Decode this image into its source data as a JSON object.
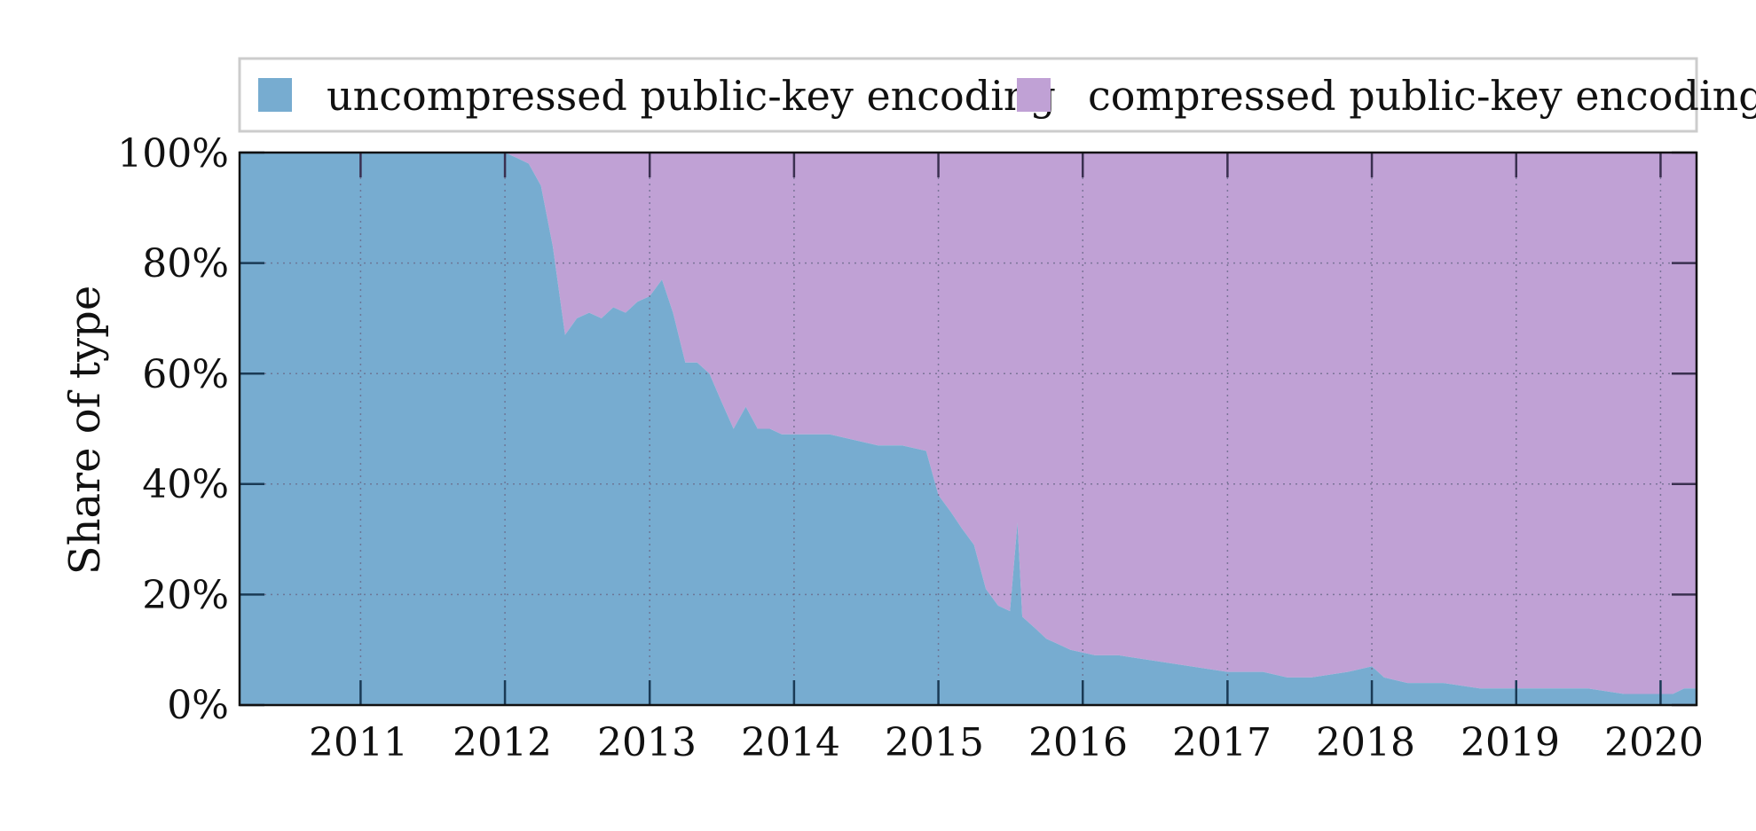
{
  "chart_data": {
    "type": "area",
    "stacked": true,
    "normalized": true,
    "ylabel": "Share of type",
    "xlabel": "",
    "xlim": [
      "2010-03-01",
      "2020-04-01"
    ],
    "ylim": [
      0,
      100
    ],
    "y_ticks": [
      0,
      20,
      40,
      60,
      80,
      100
    ],
    "y_tick_labels": [
      "0%",
      "20%",
      "40%",
      "60%",
      "80%",
      "100%"
    ],
    "x_ticks": [
      "2011-01-01",
      "2012-01-01",
      "2013-01-01",
      "2014-01-01",
      "2015-01-01",
      "2016-01-01",
      "2017-01-01",
      "2018-01-01",
      "2019-01-01",
      "2020-01-01"
    ],
    "x_tick_labels": [
      "2011",
      "2012",
      "2013",
      "2014",
      "2015",
      "2016",
      "2017",
      "2018",
      "2019",
      "2020"
    ],
    "grid": true,
    "legend_position": "top",
    "series": [
      {
        "name": "uncompressed public-key encoding",
        "color": "#77acd0",
        "x": [
          "2010-03-01",
          "2011-06-01",
          "2012-01-01",
          "2012-02-01",
          "2012-03-01",
          "2012-04-01",
          "2012-05-01",
          "2012-06-01",
          "2012-07-01",
          "2012-08-01",
          "2012-09-01",
          "2012-10-01",
          "2012-11-01",
          "2012-12-01",
          "2013-01-01",
          "2013-02-01",
          "2013-03-01",
          "2013-04-01",
          "2013-05-01",
          "2013-06-01",
          "2013-07-01",
          "2013-08-01",
          "2013-09-01",
          "2013-10-01",
          "2013-11-01",
          "2013-12-01",
          "2014-02-01",
          "2014-04-01",
          "2014-06-01",
          "2014-08-01",
          "2014-10-01",
          "2014-12-01",
          "2015-01-01",
          "2015-02-01",
          "2015-03-01",
          "2015-04-01",
          "2015-05-01",
          "2015-06-01",
          "2015-07-01",
          "2015-07-20",
          "2015-08-01",
          "2015-09-01",
          "2015-10-01",
          "2015-11-01",
          "2015-12-01",
          "2016-02-01",
          "2016-04-01",
          "2016-07-01",
          "2016-10-01",
          "2017-01-01",
          "2017-04-01",
          "2017-06-01",
          "2017-08-01",
          "2017-11-01",
          "2018-01-01",
          "2018-02-01",
          "2018-04-01",
          "2018-07-01",
          "2018-10-01",
          "2019-01-01",
          "2019-04-01",
          "2019-07-01",
          "2019-10-01",
          "2020-01-01",
          "2020-02-01",
          "2020-03-01",
          "2020-04-01"
        ],
        "values": [
          100,
          100,
          100,
          99,
          98,
          94,
          83,
          67,
          70,
          71,
          70,
          72,
          71,
          73,
          74,
          77,
          71,
          62,
          62,
          60,
          55,
          50,
          54,
          50,
          50,
          49,
          49,
          49,
          48,
          47,
          47,
          46,
          38,
          35,
          32,
          29,
          21,
          18,
          17,
          33,
          16,
          14,
          12,
          11,
          10,
          9,
          9,
          8,
          7,
          6,
          6,
          5,
          5,
          6,
          7,
          5,
          4,
          4,
          3,
          3,
          3,
          3,
          2,
          2,
          2,
          3,
          3
        ]
      },
      {
        "name": "compressed public-key encoding",
        "color": "#c0a1d5",
        "x": [
          "2010-03-01",
          "2011-06-01",
          "2012-01-01",
          "2012-02-01",
          "2012-03-01",
          "2012-04-01",
          "2012-05-01",
          "2012-06-01",
          "2012-07-01",
          "2012-08-01",
          "2012-09-01",
          "2012-10-01",
          "2012-11-01",
          "2012-12-01",
          "2013-01-01",
          "2013-02-01",
          "2013-03-01",
          "2013-04-01",
          "2013-05-01",
          "2013-06-01",
          "2013-07-01",
          "2013-08-01",
          "2013-09-01",
          "2013-10-01",
          "2013-11-01",
          "2013-12-01",
          "2014-02-01",
          "2014-04-01",
          "2014-06-01",
          "2014-08-01",
          "2014-10-01",
          "2014-12-01",
          "2015-01-01",
          "2015-02-01",
          "2015-03-01",
          "2015-04-01",
          "2015-05-01",
          "2015-06-01",
          "2015-07-01",
          "2015-07-20",
          "2015-08-01",
          "2015-09-01",
          "2015-10-01",
          "2015-11-01",
          "2015-12-01",
          "2016-02-01",
          "2016-04-01",
          "2016-07-01",
          "2016-10-01",
          "2017-01-01",
          "2017-04-01",
          "2017-06-01",
          "2017-08-01",
          "2017-11-01",
          "2018-01-01",
          "2018-02-01",
          "2018-04-01",
          "2018-07-01",
          "2018-10-01",
          "2019-01-01",
          "2019-04-01",
          "2019-07-01",
          "2019-10-01",
          "2020-01-01",
          "2020-02-01",
          "2020-03-01",
          "2020-04-01"
        ],
        "values": [
          0,
          0,
          0,
          1,
          2,
          6,
          17,
          33,
          30,
          29,
          30,
          28,
          29,
          27,
          26,
          23,
          29,
          38,
          38,
          40,
          45,
          50,
          46,
          50,
          50,
          51,
          51,
          51,
          52,
          53,
          53,
          54,
          62,
          65,
          68,
          71,
          79,
          82,
          83,
          67,
          84,
          86,
          88,
          89,
          90,
          91,
          91,
          92,
          93,
          94,
          94,
          95,
          95,
          94,
          93,
          95,
          96,
          96,
          97,
          97,
          97,
          97,
          98,
          98,
          98,
          97,
          97
        ]
      }
    ]
  }
}
